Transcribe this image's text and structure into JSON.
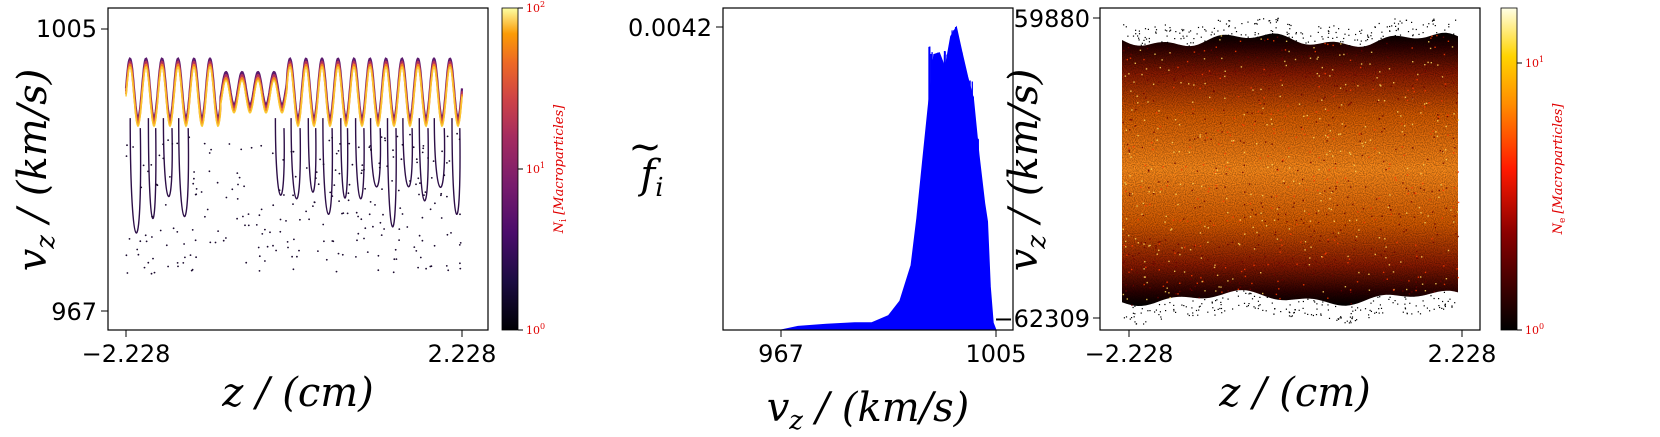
{
  "chart_data": [
    {
      "type": "scatter",
      "panel": "ion phase space",
      "x_ticks": [
        "−2.228",
        "2.228"
      ],
      "y_ticks": [
        "967",
        "1005"
      ],
      "xlim": [
        -2.228,
        2.228
      ],
      "ylim": [
        967,
        1005
      ],
      "xlabel": "z / (cm)",
      "ylabel": "v_z / (km/s)",
      "colormap": "inferno",
      "colorbar": {
        "ticks": [
          "10^0",
          "10^1",
          "10^2"
        ],
        "label": "N_i [Macroparticles]",
        "scale": "log",
        "range": [
          1,
          100
        ],
        "label_color": "#e00000"
      },
      "description_points": {
        "band_top": 1001,
        "band_bottom": 993,
        "lobe_min": 970
      }
    },
    {
      "type": "area",
      "panel": "ion distribution function",
      "color": "#0000ff",
      "x_ticks": [
        "967",
        "1005"
      ],
      "y_ticks": [
        "0.0042"
      ],
      "xlim": [
        967,
        1005
      ],
      "ylim": [
        0,
        0.0042
      ],
      "xlabel": "v_z / (km/s)",
      "ylabel": "f̃_i",
      "x": [
        967,
        970,
        975,
        980,
        983,
        986,
        988,
        990,
        991,
        992,
        993,
        994,
        995,
        996,
        997,
        998,
        999,
        1000,
        1001,
        1002,
        1003,
        1003.5,
        1004,
        1004.5,
        1005
      ],
      "y": [
        0,
        5e-05,
        8e-05,
        0.0001,
        0.0001,
        0.0002,
        0.0004,
        0.0009,
        0.0015,
        0.0023,
        0.0032,
        0.0038,
        0.0037,
        0.0038,
        0.0039,
        0.0041,
        0.0038,
        0.0033,
        0.0033,
        0.0026,
        0.0017,
        0.0015,
        0.0006,
        0.0001,
        0
      ]
    },
    {
      "type": "heatmap",
      "panel": "electron phase space",
      "x_ticks": [
        "−2.228",
        "2.228"
      ],
      "y_ticks": [
        "59880",
        "−62309"
      ],
      "xlim": [
        -2.228,
        2.228
      ],
      "ylim": [
        -62309,
        59880
      ],
      "xlabel": "z / (cm)",
      "ylabel": "v_z / (km/s)",
      "colormap": "afmhot",
      "colorbar": {
        "ticks": [
          "10^0",
          "10^1"
        ],
        "label": "N_e [Macroparticles]",
        "scale": "log",
        "range": [
          1,
          20
        ],
        "label_color": "#e00000"
      }
    }
  ]
}
